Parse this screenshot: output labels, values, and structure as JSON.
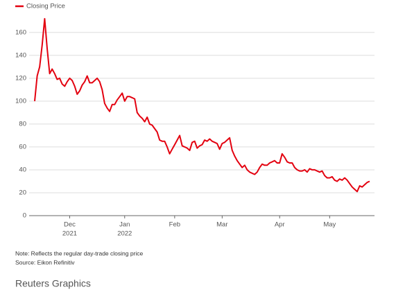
{
  "chart_data": {
    "type": "line",
    "categories": [
      null,
      null,
      null,
      null,
      null,
      null,
      null,
      null,
      null,
      null,
      null,
      null,
      null,
      null,
      "Dec",
      null,
      null,
      null,
      null,
      null,
      null,
      null,
      null,
      null,
      null,
      null,
      null,
      null,
      null,
      null,
      null,
      null,
      null,
      null,
      null,
      null,
      "Jan",
      null,
      null,
      null,
      null,
      null,
      null,
      null,
      null,
      null,
      null,
      null,
      null,
      null,
      null,
      null,
      null,
      null,
      null,
      null,
      "Feb",
      null,
      null,
      null,
      null,
      null,
      null,
      null,
      null,
      null,
      null,
      null,
      null,
      null,
      null,
      null,
      null,
      null,
      null,
      "Mar",
      null,
      null,
      null,
      null,
      null,
      null,
      null,
      null,
      null,
      null,
      null,
      null,
      null,
      null,
      null,
      null,
      null,
      null,
      null,
      null,
      null,
      null,
      "Apr",
      null,
      null,
      null,
      null,
      null,
      null,
      null,
      null,
      null,
      null,
      null,
      null,
      null,
      null,
      null,
      null,
      null,
      null,
      null,
      "May",
      null,
      null,
      null,
      null,
      null,
      null,
      null,
      null,
      null,
      null,
      null,
      null,
      null,
      null,
      null,
      null
    ],
    "category_years": [
      null,
      null,
      null,
      null,
      null,
      null,
      null,
      null,
      null,
      null,
      null,
      null,
      null,
      null,
      "2021",
      null,
      null,
      null,
      null,
      null,
      null,
      null,
      null,
      null,
      null,
      null,
      null,
      null,
      null,
      null,
      null,
      null,
      null,
      null,
      null,
      null,
      "2022",
      null,
      null,
      null,
      null,
      null,
      null,
      null,
      null,
      null,
      null,
      null,
      null,
      null,
      null,
      null,
      null,
      null,
      null,
      null,
      null,
      null,
      null,
      null,
      null,
      null,
      null,
      null,
      null,
      null,
      null,
      null,
      null,
      null,
      null,
      null,
      null,
      null,
      null,
      null,
      null,
      null,
      null,
      null,
      null,
      null,
      null,
      null,
      null,
      null,
      null,
      null,
      null,
      null,
      null,
      null,
      null,
      null,
      null,
      null,
      null,
      null,
      null,
      null,
      null,
      null,
      null,
      null,
      null,
      null,
      null,
      null,
      null,
      null,
      null,
      null,
      null,
      null,
      null,
      null,
      null,
      null,
      null,
      null,
      null,
      null,
      null,
      null,
      null,
      null,
      null,
      null,
      null,
      null,
      null,
      null,
      null,
      null,
      null
    ],
    "series": [
      {
        "name": "Closing Price",
        "color": "#e3000f",
        "values": [
          100,
          122,
          130,
          149,
          172,
          146,
          124,
          128,
          124,
          119,
          120,
          115,
          113,
          117,
          120,
          118,
          113,
          106,
          109,
          114,
          117,
          122,
          116,
          116,
          118,
          120,
          117,
          110,
          98,
          94,
          91,
          97,
          97,
          101,
          104,
          107,
          100,
          104,
          104,
          103,
          102,
          90,
          87,
          85,
          82,
          86,
          80,
          79,
          76,
          73,
          66,
          65,
          65,
          60,
          54,
          58,
          62,
          66,
          70,
          61,
          60,
          59,
          57,
          64,
          65,
          59,
          61,
          62,
          66,
          65,
          67,
          65,
          64,
          63,
          58,
          63,
          64,
          66,
          68,
          57,
          52,
          48,
          45,
          42,
          44,
          40,
          38,
          37,
          36,
          38,
          42,
          45,
          44,
          44,
          46,
          47,
          48,
          46,
          46,
          54,
          51,
          47,
          46,
          46,
          42,
          40,
          39,
          39,
          40,
          38,
          41,
          40,
          40,
          39,
          38,
          39,
          35,
          33,
          33,
          34,
          31,
          30,
          32,
          31,
          33,
          31,
          28,
          25,
          23,
          21,
          26,
          25,
          27,
          29,
          30
        ]
      }
    ],
    "ylim": [
      0,
      175
    ],
    "yticks": [
      0,
      20,
      40,
      60,
      80,
      100,
      120,
      140,
      160
    ],
    "grid": true,
    "legend": "top-left",
    "notes": [
      "Note: Reflects the regular day-trade closing price",
      "Source: Eikon Refinitiv"
    ],
    "brand": "Reuters Graphics"
  }
}
